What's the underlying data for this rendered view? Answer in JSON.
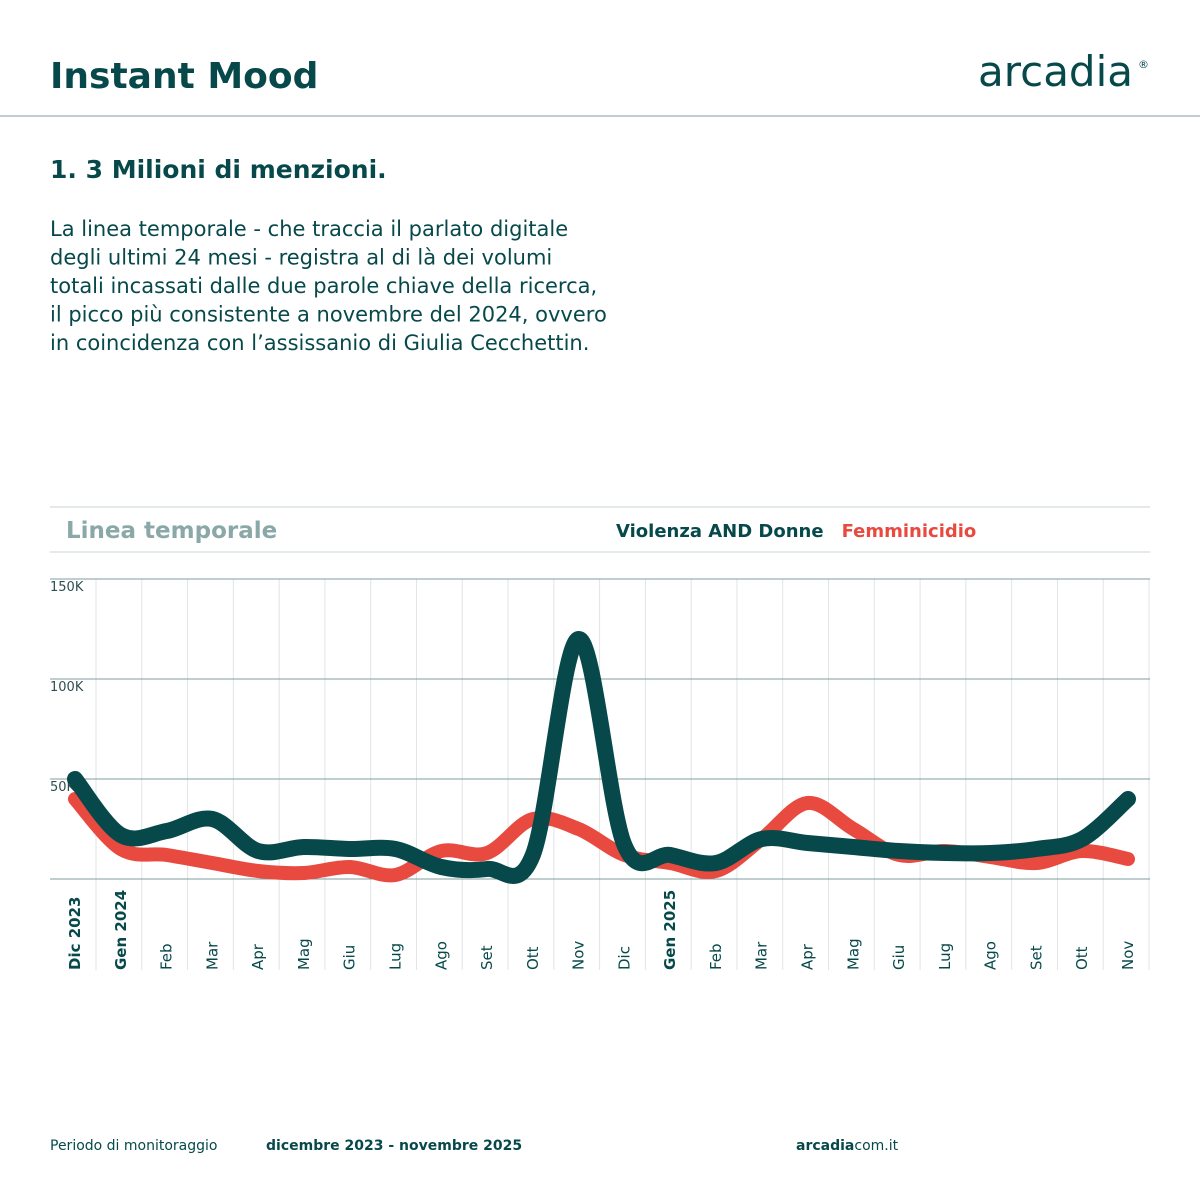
{
  "header": {
    "title": "Instant Mood",
    "logo": "arcadia",
    "logo_mark": "®"
  },
  "section": {
    "heading": "1. 3 Milioni di menzioni.",
    "paragraph": [
      "La linea temporale - che traccia il parlato digitale",
      "degli ultimi 24 mesi - registra al di là dei volumi",
      "totali incassati dalle due parole chiave della ricerca,",
      "il picco più consistente a novembre del 2024, ovvero",
      "in coincidenza con l’assissanio di Giulia Cecchettin."
    ]
  },
  "chart_data": {
    "type": "line",
    "title": "Linea temporale",
    "categories": [
      "Dic 2023",
      "Gen 2024",
      "Feb",
      "Mar",
      "Apr",
      "Mag",
      "Giu",
      "Lug",
      "Ago",
      "Set",
      "Ott",
      "Nov",
      "Dic",
      "Gen 2025",
      "Feb",
      "Mar",
      "Apr",
      "Mag",
      "Giu",
      "Lug",
      "Ago",
      "Set",
      "Ott",
      "Nov"
    ],
    "series": [
      {
        "name": "Femminicidio",
        "color": "#e84a40",
        "values": [
          40000,
          15000,
          12000,
          8000,
          4000,
          3000,
          6000,
          2000,
          14000,
          13000,
          30000,
          25000,
          12000,
          8000,
          4000,
          20000,
          38000,
          25000,
          12000,
          14000,
          11000,
          8000,
          14000,
          10000
        ]
      },
      {
        "name": "Violenza AND Donne",
        "color": "#07494b",
        "values": [
          50000,
          22000,
          24000,
          30000,
          14000,
          16000,
          15000,
          15000,
          6000,
          5000,
          12000,
          120000,
          17000,
          12000,
          8000,
          20000,
          18000,
          16000,
          14000,
          13000,
          13000,
          15000,
          20000,
          40000
        ]
      }
    ],
    "ylim": [
      0,
      150000
    ],
    "yticks": [
      {
        "value": 50000,
        "label": "50K"
      },
      {
        "value": 100000,
        "label": "100K"
      },
      {
        "value": 150000,
        "label": "150K"
      }
    ],
    "grid": true
  },
  "footer": {
    "period_label": "Periodo di monitoraggio",
    "period": "dicembre 2023 - novembre 2025",
    "site_bold": "arcadia",
    "site_rest": "com.it"
  }
}
